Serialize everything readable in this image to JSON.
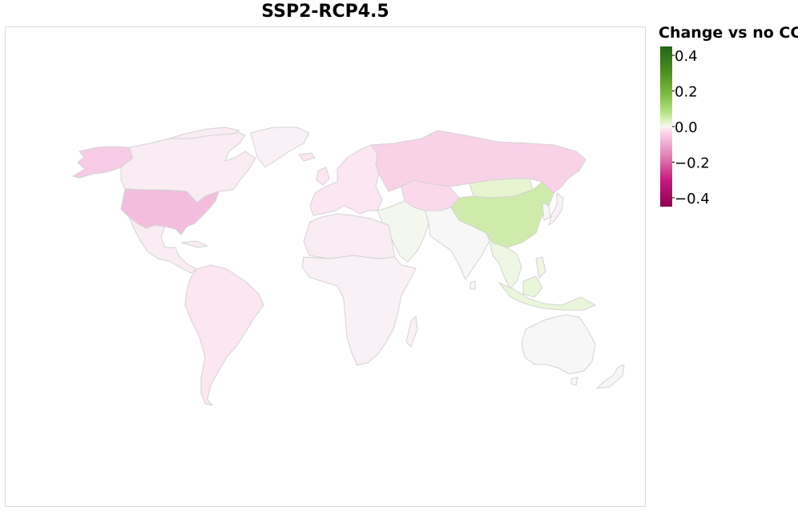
{
  "title": "SSP2-RCP4.5",
  "legend": {
    "title": "Change vs no CC",
    "domain": [
      -0.45,
      0.45
    ],
    "ticks": [
      {
        "value": 0.4,
        "label": "0.4"
      },
      {
        "value": 0.2,
        "label": "0.2"
      },
      {
        "value": 0.0,
        "label": "0.0"
      },
      {
        "value": -0.2,
        "label": "−0.2"
      },
      {
        "value": -0.4,
        "label": "−0.4"
      }
    ],
    "color_stops": [
      {
        "value": -0.45,
        "color": "#8e0152"
      },
      {
        "value": -0.3,
        "color": "#c51b7d"
      },
      {
        "value": -0.18,
        "color": "#de77ae"
      },
      {
        "value": -0.08,
        "color": "#f1b6da"
      },
      {
        "value": -0.02,
        "color": "#fde0ef"
      },
      {
        "value": 0.0,
        "color": "#f7f7f7"
      },
      {
        "value": 0.02,
        "color": "#e6f5d0"
      },
      {
        "value": 0.08,
        "color": "#b8e186"
      },
      {
        "value": 0.18,
        "color": "#7fbc41"
      },
      {
        "value": 0.3,
        "color": "#4d9221"
      },
      {
        "value": 0.45,
        "color": "#276419"
      }
    ]
  },
  "regions": [
    {
      "name": "Alaska",
      "value": -0.05
    },
    {
      "name": "Canada",
      "value": -0.01
    },
    {
      "name": "Greenland",
      "value": -0.005
    },
    {
      "name": "United States",
      "value": -0.07
    },
    {
      "name": "Mexico and Central America",
      "value": -0.01
    },
    {
      "name": "South America",
      "value": -0.015
    },
    {
      "name": "Europe",
      "value": -0.015
    },
    {
      "name": "Russia",
      "value": -0.04
    },
    {
      "name": "Central Asia",
      "value": -0.03
    },
    {
      "name": "Middle East",
      "value": 0.005
    },
    {
      "name": "North Africa",
      "value": -0.01
    },
    {
      "name": "Sub-Saharan Africa",
      "value": -0.005
    },
    {
      "name": "Madagascar",
      "value": -0.005
    },
    {
      "name": "South Asia",
      "value": 0.0
    },
    {
      "name": "China",
      "value": 0.05
    },
    {
      "name": "Mongolia",
      "value": 0.02
    },
    {
      "name": "Japan",
      "value": -0.005
    },
    {
      "name": "Korea",
      "value": 0.0
    },
    {
      "name": "Southeast Asia",
      "value": 0.01
    },
    {
      "name": "Indonesia",
      "value": 0.015
    },
    {
      "name": "Australia",
      "value": 0.0
    },
    {
      "name": "New Zealand",
      "value": 0.0
    }
  ]
}
